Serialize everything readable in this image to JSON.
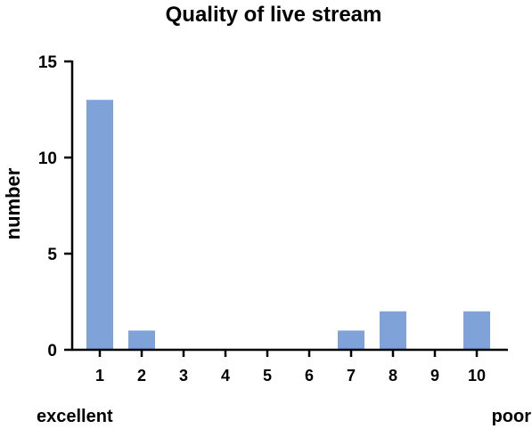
{
  "chart_data": {
    "type": "bar",
    "title": "Quality of live stream",
    "ylabel": "number",
    "xlabel": "",
    "categories": [
      "1",
      "2",
      "3",
      "4",
      "5",
      "6",
      "7",
      "8",
      "9",
      "10"
    ],
    "values": [
      13,
      1,
      0,
      0,
      0,
      0,
      1,
      2,
      0,
      2
    ],
    "ylim": [
      0,
      15
    ],
    "yticks": [
      0,
      5,
      10,
      15
    ],
    "bar_color": "#7fa2d9",
    "grid": false,
    "scale_labels": {
      "left": "excellent",
      "right": "poor"
    }
  }
}
